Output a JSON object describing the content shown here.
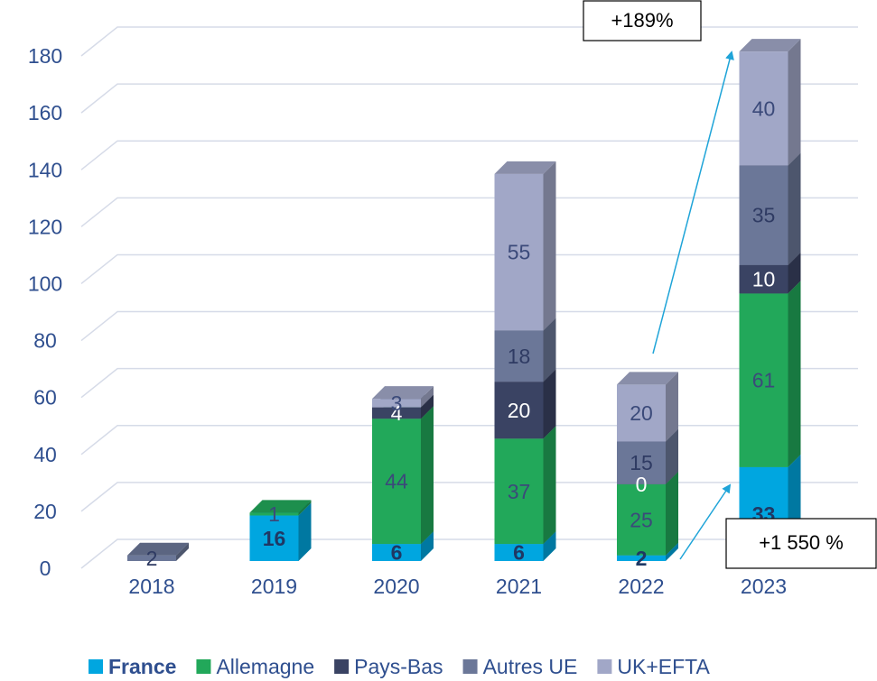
{
  "chart_data": {
    "type": "bar3d_stacked",
    "categories": [
      "2018",
      "2019",
      "2020",
      "2021",
      "2022",
      "2023"
    ],
    "series": [
      {
        "name": "France",
        "color": "#00a6e0",
        "label_color": "#1f3864",
        "label_bold": true,
        "values": [
          null,
          16,
          6,
          6,
          2,
          33
        ]
      },
      {
        "name": "Allemagne",
        "color": "#22a85a",
        "label_color": "#3b4a7a",
        "label_bold": false,
        "values": [
          null,
          1,
          44,
          37,
          25,
          61
        ]
      },
      {
        "name": "Pays-Bas",
        "color": "#3a4363",
        "label_color": "#ffffff",
        "label_bold": false,
        "values": [
          null,
          null,
          4,
          20,
          0,
          10
        ]
      },
      {
        "name": "Autres UE",
        "color": "#6b7798",
        "label_color": "#2f3b63",
        "label_bold": false,
        "values": [
          2,
          null,
          null,
          18,
          15,
          35
        ]
      },
      {
        "name": "UK+EFTA",
        "color": "#a1a7c7",
        "label_color": "#3b4a7a",
        "label_bold": false,
        "values": [
          null,
          null,
          3,
          55,
          20,
          40
        ]
      }
    ],
    "ylim": [
      0,
      180
    ],
    "yticks": [
      0,
      20,
      40,
      60,
      80,
      100,
      120,
      140,
      160,
      180
    ],
    "grid": true,
    "legend": "bottom",
    "annotations": [
      "+189%",
      "+1 550 %"
    ]
  }
}
